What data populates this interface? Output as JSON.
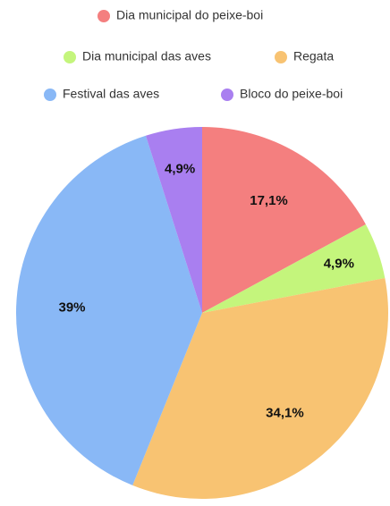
{
  "chart_data": {
    "type": "pie",
    "categories": [
      "Dia municipal do peixe-boi",
      "Dia municipal das aves",
      "Regata",
      "Festival das aves",
      "Bloco do peixe-boi"
    ],
    "values": [
      17.1,
      4.9,
      34.1,
      39,
      4.9
    ],
    "value_labels": [
      "17,1%",
      "4,9%",
      "34,1%",
      "39%",
      "4,9%"
    ],
    "colors": [
      "#f47f7f",
      "#c4f57c",
      "#f8c372",
      "#89b8f6",
      "#a97ff0"
    ]
  }
}
